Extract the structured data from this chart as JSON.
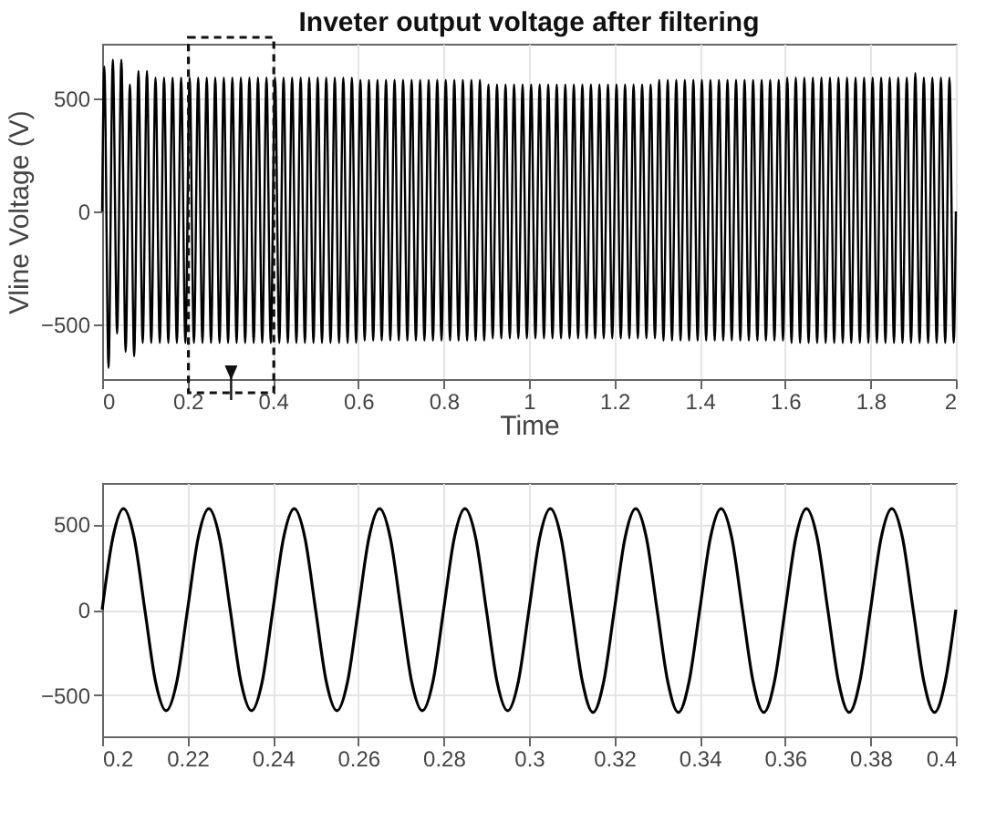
{
  "chart_data": [
    {
      "type": "line",
      "title": "Inveter output voltage after filtering",
      "xlabel": "Time",
      "ylabel": "Vline Voltage (V)",
      "xlim": [
        0,
        2
      ],
      "ylim": [
        -740,
        740
      ],
      "xticks": [
        0,
        0.2,
        0.4,
        0.6,
        0.8,
        1,
        1.2,
        1.4,
        1.6,
        1.8,
        2
      ],
      "yticks": [
        -500,
        0,
        500
      ],
      "grid": true,
      "x": [
        0,
        0.005,
        0.015,
        0.025,
        0.035,
        0.045,
        0.055,
        0.065,
        0.075,
        0.085,
        0.095,
        0.105,
        0.115,
        0.125,
        0.135,
        0.145,
        0.155,
        0.165,
        0.175,
        0.185,
        0.195,
        0.205,
        0.215,
        0.225,
        0.235,
        0.245,
        0.255,
        0.265,
        0.275,
        0.285,
        0.295,
        0.305,
        0.315,
        0.325,
        0.335,
        0.345,
        0.355,
        0.365,
        0.375,
        0.385,
        0.395,
        0.405,
        0.415,
        0.425,
        0.435,
        0.445,
        0.455,
        0.465,
        0.475,
        0.485,
        0.495,
        0.505,
        0.515,
        0.525,
        0.535,
        0.545,
        0.555,
        0.565,
        0.575,
        0.585,
        0.595,
        0.605,
        0.615,
        0.625,
        0.635,
        0.645,
        0.655,
        0.665,
        0.675,
        0.685,
        0.695,
        0.705,
        0.715,
        0.725,
        0.735,
        0.745,
        0.755,
        0.765,
        0.775,
        0.785,
        0.795,
        0.805,
        0.815,
        0.825,
        0.835,
        0.845,
        0.855,
        0.865,
        0.875,
        0.885,
        0.895,
        0.905,
        0.915,
        0.925,
        0.935,
        0.945,
        0.955,
        0.965,
        0.975,
        0.985,
        0.995,
        1.005,
        1.015,
        1.025,
        1.035,
        1.045,
        1.055,
        1.065,
        1.075,
        1.085,
        1.095,
        1.105,
        1.115,
        1.125,
        1.135,
        1.145,
        1.155,
        1.165,
        1.175,
        1.185,
        1.195,
        1.205,
        1.215,
        1.225,
        1.235,
        1.245,
        1.255,
        1.265,
        1.275,
        1.285,
        1.295,
        1.305,
        1.315,
        1.325,
        1.335,
        1.345,
        1.355,
        1.365,
        1.375,
        1.385,
        1.395,
        1.405,
        1.415,
        1.425,
        1.435,
        1.445,
        1.455,
        1.465,
        1.475,
        1.485,
        1.495,
        1.505,
        1.515,
        1.525,
        1.535,
        1.545,
        1.555,
        1.565,
        1.575,
        1.585,
        1.595,
        1.605,
        1.615,
        1.625,
        1.635,
        1.645,
        1.655,
        1.665,
        1.675,
        1.685,
        1.695,
        1.705,
        1.715,
        1.725,
        1.735,
        1.745,
        1.755,
        1.765,
        1.775,
        1.785,
        1.795,
        1.805,
        1.815,
        1.825,
        1.835,
        1.845,
        1.855,
        1.865,
        1.875,
        1.885,
        1.895,
        1.905,
        1.915,
        1.925,
        1.935,
        1.945,
        1.955,
        1.965,
        1.975,
        1.985,
        1.995,
        2
      ],
      "series": [
        {
          "color": "#000000",
          "values": [
            0,
            640,
            -690,
            670,
            -540,
            670,
            -620,
            560,
            -640,
            620,
            -580,
            620,
            -580,
            590,
            -580,
            590,
            -580,
            590,
            -580,
            590,
            -580,
            590,
            -580,
            590,
            -580,
            590,
            -580,
            590,
            -580,
            590,
            -580,
            590,
            -580,
            590,
            -580,
            590,
            -580,
            590,
            -580,
            590,
            -580,
            590,
            -580,
            590,
            -580,
            590,
            -580,
            590,
            -580,
            590,
            -580,
            590,
            -580,
            590,
            -580,
            590,
            -580,
            590,
            -580,
            590,
            -580,
            580,
            -570,
            580,
            -570,
            580,
            -570,
            580,
            -570,
            580,
            -570,
            580,
            -570,
            580,
            -570,
            580,
            -570,
            580,
            -570,
            580,
            -570,
            580,
            -570,
            580,
            -570,
            580,
            -570,
            580,
            -570,
            580,
            -570,
            560,
            -560,
            560,
            -560,
            560,
            -560,
            560,
            -560,
            560,
            -560,
            560,
            -560,
            560,
            -560,
            560,
            -560,
            560,
            -560,
            560,
            -560,
            560,
            -560,
            560,
            -560,
            560,
            -560,
            560,
            -560,
            560,
            -560,
            560,
            -560,
            560,
            -560,
            560,
            -560,
            560,
            -560,
            560,
            -560,
            580,
            -570,
            580,
            -570,
            580,
            -570,
            580,
            -570,
            580,
            -570,
            580,
            -570,
            580,
            -570,
            580,
            -570,
            580,
            -570,
            580,
            -570,
            580,
            -570,
            580,
            -570,
            580,
            -570,
            580,
            -570,
            580,
            -570,
            590,
            -580,
            590,
            -580,
            590,
            -580,
            590,
            -580,
            590,
            -580,
            590,
            -580,
            590,
            -580,
            590,
            -580,
            590,
            -580,
            590,
            -580,
            590,
            -580,
            590,
            -580,
            590,
            -580,
            590,
            -580,
            590,
            -580,
            610,
            -580,
            590,
            -580,
            590,
            -580,
            590,
            -580,
            590,
            -580,
            0
          ]
        }
      ]
    },
    {
      "type": "line",
      "xlim": [
        0.2,
        0.4
      ],
      "ylim": [
        -740,
        740
      ],
      "xticks": [
        0.2,
        0.22,
        0.24,
        0.26,
        0.28,
        0.3,
        0.32,
        0.34,
        0.36,
        0.38,
        0.4
      ],
      "yticks": [
        -500,
        0,
        500
      ],
      "grid": true,
      "x": [
        0.2,
        0.2025,
        0.205,
        0.2075,
        0.21,
        0.2125,
        0.215,
        0.2175,
        0.22,
        0.2225,
        0.225,
        0.2275,
        0.23,
        0.2325,
        0.235,
        0.2375,
        0.24,
        0.2425,
        0.245,
        0.2475,
        0.25,
        0.2525,
        0.255,
        0.2575,
        0.26,
        0.2625,
        0.265,
        0.2675,
        0.27,
        0.2725,
        0.275,
        0.2775,
        0.28,
        0.2825,
        0.285,
        0.2875,
        0.29,
        0.2925,
        0.295,
        0.2975,
        0.3,
        0.3025,
        0.305,
        0.3075,
        0.31,
        0.3125,
        0.315,
        0.3175,
        0.32,
        0.3225,
        0.325,
        0.3275,
        0.33,
        0.3325,
        0.335,
        0.3375,
        0.34,
        0.3425,
        0.345,
        0.3475,
        0.35,
        0.3525,
        0.355,
        0.3575,
        0.36,
        0.3625,
        0.365,
        0.3675,
        0.37,
        0.3725,
        0.375,
        0.3775,
        0.38,
        0.3825,
        0.385,
        0.3875,
        0.39,
        0.3925,
        0.395,
        0.3975,
        0.4
      ],
      "series": [
        {
          "color": "#000000",
          "values": [
            0,
            420,
            590,
            420,
            0,
            -420,
            -590,
            -420,
            0,
            420,
            590,
            420,
            0,
            -420,
            -590,
            -420,
            0,
            420,
            590,
            420,
            0,
            -420,
            -590,
            -420,
            0,
            420,
            590,
            420,
            0,
            -420,
            -590,
            -420,
            0,
            420,
            590,
            420,
            0,
            -420,
            -590,
            -420,
            0,
            420,
            590,
            420,
            0,
            -420,
            -600,
            -420,
            0,
            420,
            590,
            420,
            0,
            -420,
            -600,
            -420,
            0,
            420,
            590,
            420,
            0,
            -420,
            -600,
            -420,
            0,
            420,
            590,
            420,
            0,
            -420,
            -600,
            -420,
            0,
            420,
            590,
            420,
            0,
            -420,
            -600,
            -420,
            0
          ]
        }
      ]
    }
  ]
}
